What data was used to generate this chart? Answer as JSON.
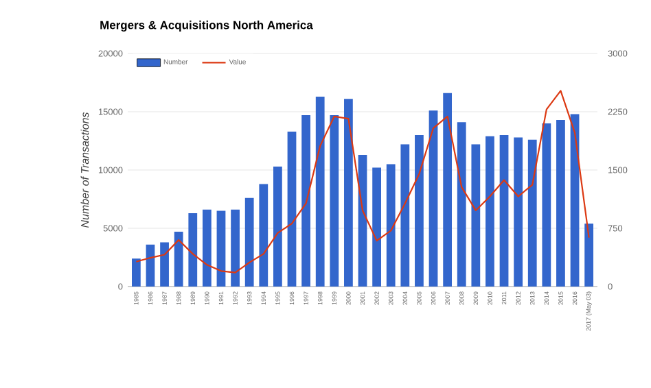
{
  "chart_data": {
    "type": "bar",
    "title": "Mergers & Acquisitions North America",
    "ylabel": "Number of Transactions",
    "categories": [
      "1985",
      "1986",
      "1987",
      "1988",
      "1989",
      "1990",
      "1991",
      "1992",
      "1993",
      "1994",
      "1995",
      "1996",
      "1997",
      "1998",
      "1999",
      "2000",
      "2001",
      "2002",
      "2003",
      "2004",
      "2005",
      "2006",
      "2007",
      "2008",
      "2009",
      "2010",
      "2011",
      "2012",
      "2013",
      "2014",
      "2015",
      "2016",
      "2017 (May 03)"
    ],
    "series": [
      {
        "name": "Number",
        "color": "#3366cc",
        "values": [
          2400,
          3600,
          3800,
          4700,
          6300,
          6600,
          6500,
          6600,
          7600,
          8800,
          10300,
          13300,
          14700,
          16300,
          14700,
          16100,
          11300,
          10200,
          10500,
          12200,
          13000,
          15100,
          16600,
          14100,
          12200,
          12900,
          13000,
          12800,
          12600,
          14000,
          14300,
          14800,
          5400
        ]
      },
      {
        "name": "Value",
        "color": "#dc3912",
        "type": "line",
        "axis": "y2",
        "values": [
          320,
          370,
          410,
          600,
          420,
          280,
          200,
          180,
          310,
          420,
          690,
          810,
          1070,
          1810,
          2190,
          2160,
          980,
          590,
          720,
          1070,
          1450,
          2040,
          2190,
          1280,
          980,
          1160,
          1370,
          1160,
          1310,
          2280,
          2520,
          1980,
          630
        ]
      }
    ],
    "ylim": [
      0,
      20000
    ],
    "yticks": [
      0,
      5000,
      10000,
      15000,
      20000
    ],
    "y2lim": [
      0,
      3000
    ],
    "y2ticks": [
      0,
      750,
      1500,
      2250,
      3000
    ],
    "grid": "y",
    "legend": "top left"
  }
}
